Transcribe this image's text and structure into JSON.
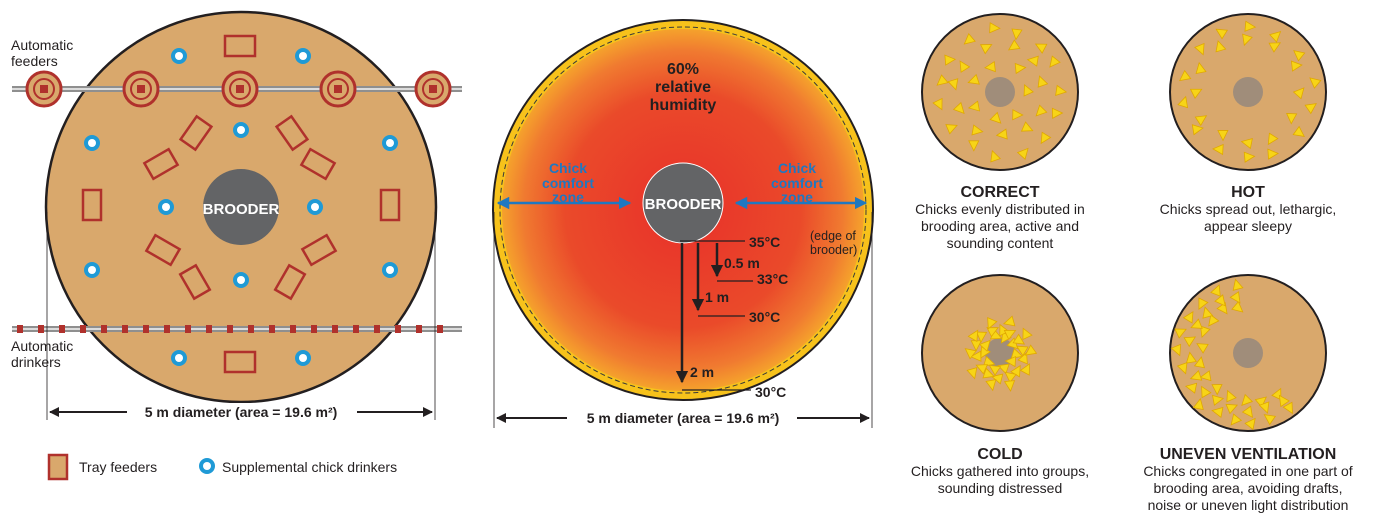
{
  "colors": {
    "floor": "#d9a86c",
    "floor_stroke": "#231f20",
    "brooder": "#636466",
    "chick": "#f7d417",
    "feeder_fill": "#d9a86c",
    "feeder_stroke": "#b0312c",
    "drinker": "#1f9ad6",
    "heat_outer": "#f7c21b",
    "heat_mid": "#ee6a2a",
    "heat_inner": "#e8302a",
    "comfort_text": "#1f78c1",
    "pipe": "#9a9a9a"
  },
  "panel1": {
    "auto_feeders_line1": "Automatic",
    "auto_feeders_line2": "feeders",
    "auto_drinkers_line1": "Automatic",
    "auto_drinkers_line2": "drinkers",
    "brooder_label": "BROODER",
    "diameter_label": "5 m diameter (area = 19.6 m²)",
    "legend_tray": "Tray feeders",
    "legend_drinkers": "Supplemental chick drinkers"
  },
  "panel2": {
    "humidity_line1": "60%",
    "humidity_line2": "relative",
    "humidity_line3": "humidity",
    "comfort_line1": "Chick",
    "comfort_line2": "comfort",
    "comfort_line3": "zone",
    "brooder_label": "BROODER",
    "temp_35": "35°C",
    "edge_note_line1": "(edge of",
    "edge_note_line2": "brooder)",
    "dist_05": "0.5 m",
    "temp_33": "33°C",
    "dist_1": "1 m",
    "temp_30a": "30°C",
    "dist_2": "2 m",
    "temp_30b": "30°C",
    "diameter_label": "5 m diameter (area = 19.6 m²)"
  },
  "states": [
    {
      "title": "CORRECT",
      "desc": [
        "Chicks evenly distributed in",
        "brooding area, active and",
        "sounding content"
      ]
    },
    {
      "title": "HOT",
      "desc": [
        "Chicks spread out, lethargic,",
        "appear sleepy"
      ]
    },
    {
      "title": "COLD",
      "desc": [
        "Chicks gathered into groups,",
        "sounding distressed"
      ]
    },
    {
      "title": "UNEVEN VENTILATION",
      "desc": [
        "Chicks congregated in one part of",
        "brooding area, avoiding drafts,",
        "noise or uneven light distribution"
      ]
    }
  ]
}
